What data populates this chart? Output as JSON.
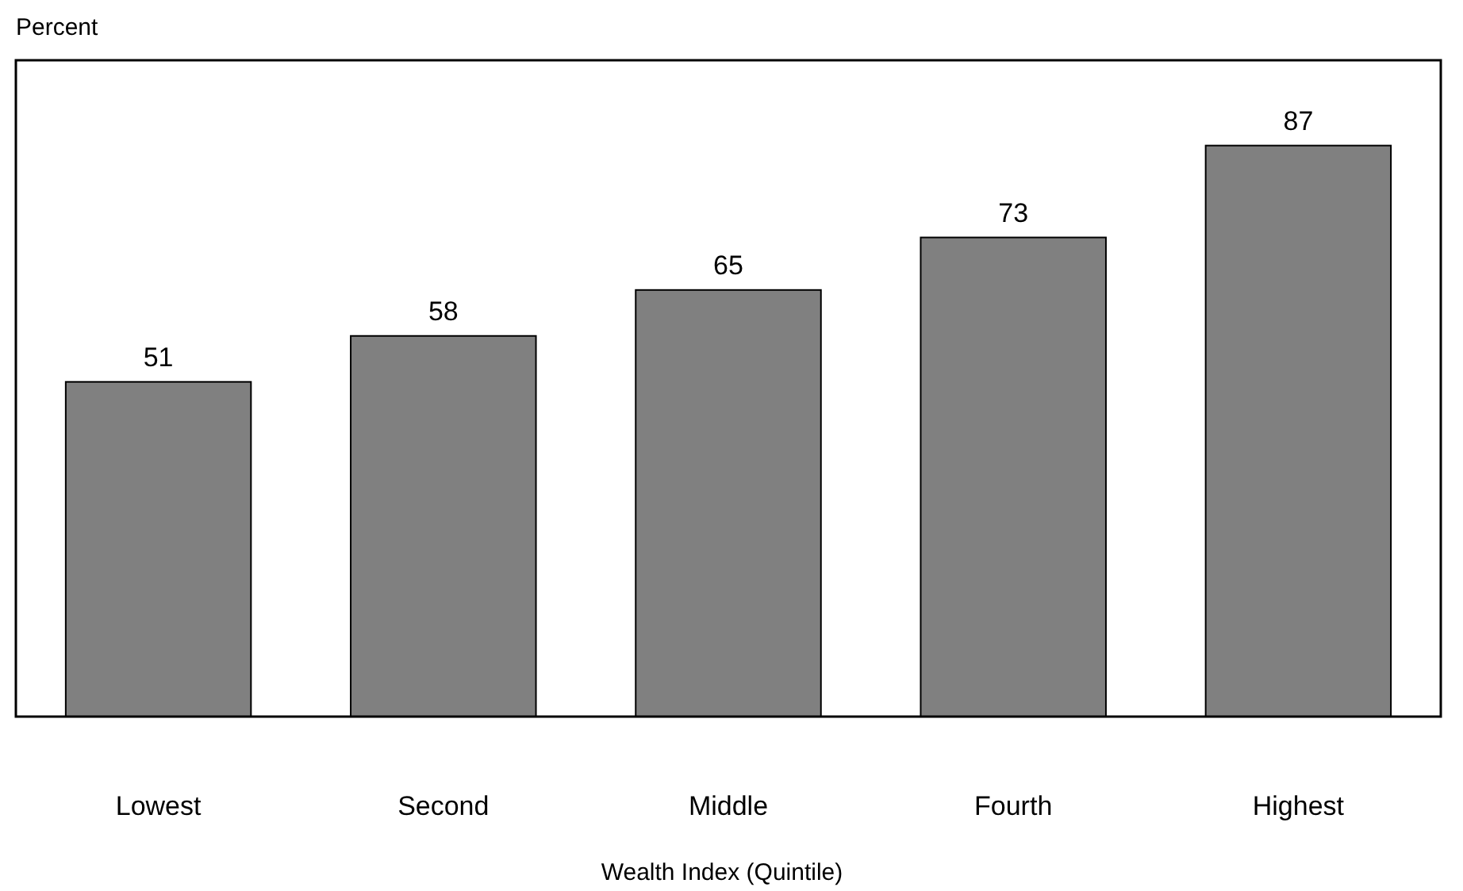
{
  "chart_data": {
    "type": "bar",
    "ylabel": "Percent",
    "xlabel": "Wealth Index (Quintile)",
    "categories": [
      "Lowest",
      "Second",
      "Middle",
      "Fourth",
      "Highest"
    ],
    "values": [
      51,
      58,
      65,
      73,
      87
    ],
    "color": "#808080",
    "ylim": [
      0,
      100
    ],
    "tick_labels": "x",
    "data_labels": true
  }
}
